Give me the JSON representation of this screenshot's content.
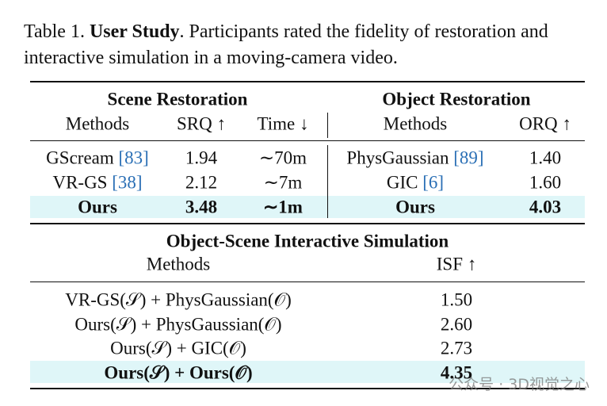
{
  "caption": {
    "label": "Table 1.",
    "title": "User Study",
    "text": ". Participants rated the fidelity of restoration and interactive simulation in a moving-camera video."
  },
  "scene": {
    "title": "Scene Restoration",
    "headers": [
      "Methods",
      "SRQ ↑",
      "Time ↓"
    ],
    "rows": [
      {
        "method": "GScream",
        "cite": "[83]",
        "srq": "1.94",
        "time": "∼70m"
      },
      {
        "method": "VR-GS",
        "cite": "[38]",
        "srq": "2.12",
        "time": "∼7m"
      },
      {
        "method": "Ours",
        "srq": "3.48",
        "time": "∼1m"
      }
    ]
  },
  "object": {
    "title": "Object Restoration",
    "headers": [
      "Methods",
      "ORQ ↑"
    ],
    "rows": [
      {
        "method": "PhysGaussian",
        "cite": "[89]",
        "orq": "1.40"
      },
      {
        "method": "GIC",
        "cite": "[6]",
        "orq": "1.60"
      },
      {
        "method": "Ours",
        "orq": "4.03"
      }
    ]
  },
  "simulation": {
    "title": "Object-Scene Interactive Simulation",
    "headers": [
      "Methods",
      "ISF ↑"
    ],
    "rows": [
      {
        "method": "VR-GS(𝒮) + PhysGaussian(𝒪)",
        "isf": "1.50"
      },
      {
        "method": "Ours(𝒮) + PhysGaussian(𝒪)",
        "isf": "2.60"
      },
      {
        "method": "Ours(𝒮) + GIC(𝒪)",
        "isf": "2.73"
      },
      {
        "method": "Ours(𝒮) + Ours(𝒪)",
        "isf": "4.35"
      }
    ]
  },
  "watermark": "公众号 · 3D视觉之心"
}
